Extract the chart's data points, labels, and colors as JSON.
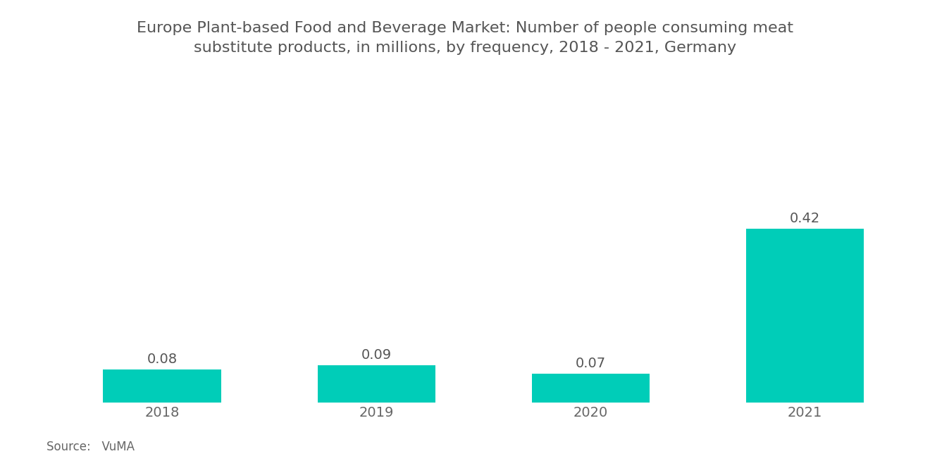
{
  "title_line1": "Europe Plant-based Food and Beverage Market: Number of people consuming meat",
  "title_line2": "substitute products, in millions, by frequency, 2018 - 2021, Germany",
  "categories": [
    "2018",
    "2019",
    "2020",
    "2021"
  ],
  "values": [
    0.08,
    0.09,
    0.07,
    0.42
  ],
  "bar_color": "#00CDB8",
  "title_fontsize": 16,
  "tick_fontsize": 14,
  "value_fontsize": 14,
  "source_text": "Source:   VuMA",
  "source_fontsize": 12,
  "background_color": "#ffffff",
  "ylim": [
    0,
    0.52
  ],
  "bar_width": 0.55
}
